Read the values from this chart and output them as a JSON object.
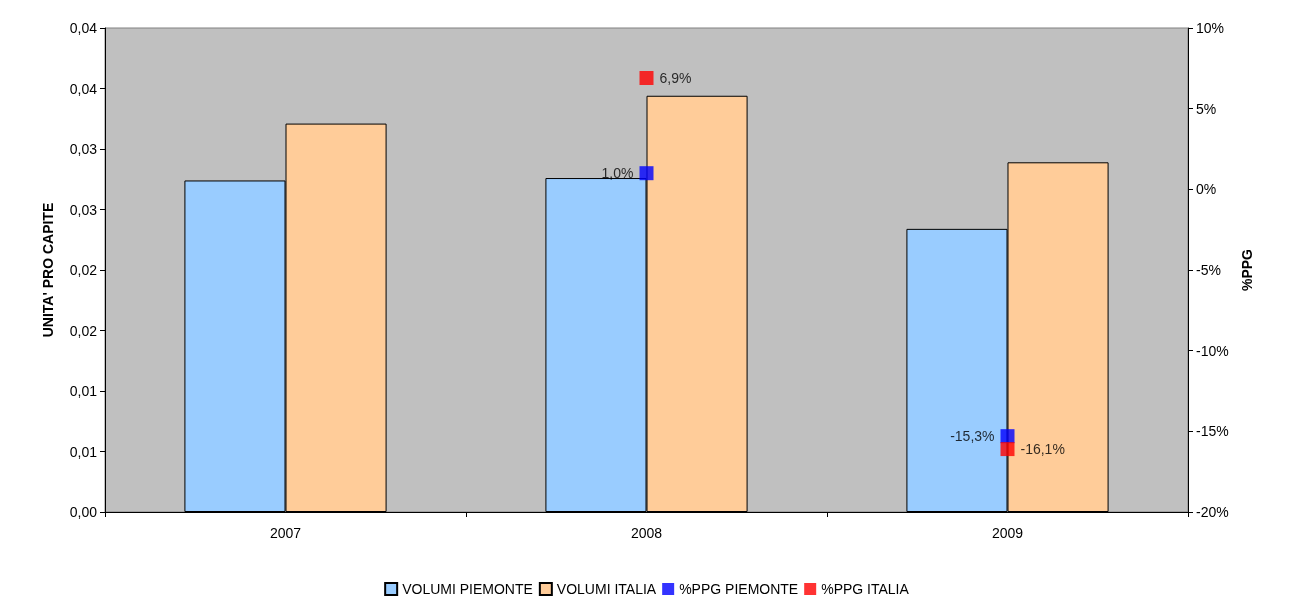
{
  "chart_data": {
    "type": "bar",
    "ylabel": "UNITA' PRO CAPITE",
    "y2label": "%PPG",
    "categories": [
      "2007",
      "2008",
      "2009"
    ],
    "ylim": [
      0,
      0.04
    ],
    "yticks": [
      {
        "value": 0,
        "label": "0,00"
      },
      {
        "value": 0.005,
        "label": "0,01"
      },
      {
        "value": 0.01,
        "label": "0,01"
      },
      {
        "value": 0.015,
        "label": "0,02"
      },
      {
        "value": 0.02,
        "label": "0,02"
      },
      {
        "value": 0.025,
        "label": "0,03"
      },
      {
        "value": 0.03,
        "label": "0,03"
      },
      {
        "value": 0.035,
        "label": "0,04"
      },
      {
        "value": 0.04,
        "label": "0,04"
      }
    ],
    "y2lim": [
      -20,
      10
    ],
    "y2ticks": [
      {
        "value": -20,
        "label": "-20%"
      },
      {
        "value": -15,
        "label": "-15%"
      },
      {
        "value": -10,
        "label": "-10%"
      },
      {
        "value": -5,
        "label": "-5%"
      },
      {
        "value": 0,
        "label": "0%"
      },
      {
        "value": 5,
        "label": "5%"
      },
      {
        "value": 10,
        "label": "10%"
      }
    ],
    "series": [
      {
        "name": "VOLUMI PIEMONTE",
        "color": "#99ccff",
        "values": [
          0.0274,
          0.0276,
          0.0234
        ]
      },
      {
        "name": "VOLUMI ITALIA",
        "color": "#ffcc99",
        "values": [
          0.0321,
          0.0344,
          0.0289
        ]
      },
      {
        "name": "%PPG PIEMONTE",
        "type": "scatter",
        "axis": "y2",
        "color": "#0000ff",
        "values": [
          null,
          1.0,
          -15.3
        ],
        "value_labels": [
          null,
          "1,0%",
          "-15,3%"
        ]
      },
      {
        "name": "%PPG ITALIA",
        "type": "scatter",
        "axis": "y2",
        "color": "#ff0000",
        "values": [
          null,
          6.9,
          -16.1
        ],
        "value_labels": [
          null,
          "6,9%",
          "-16,1%"
        ]
      }
    ],
    "marker": "square",
    "legend": "bottom",
    "grid": false
  }
}
